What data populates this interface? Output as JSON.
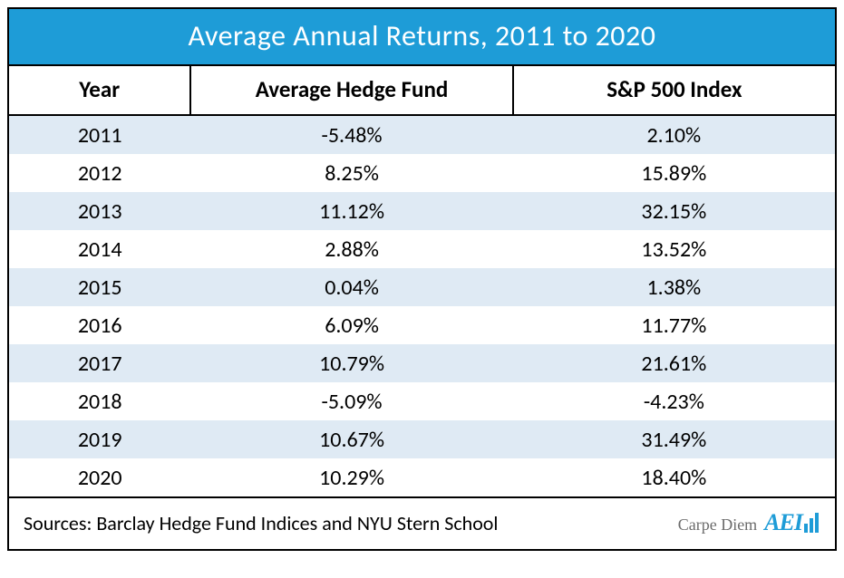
{
  "title": "Average Annual Returns, 2011 to 2020",
  "columns": [
    "Year",
    "Average Hedge Fund",
    "S&P 500 Index"
  ],
  "rows": [
    [
      "2011",
      "-5.48%",
      "2.10%"
    ],
    [
      "2012",
      "8.25%",
      "15.89%"
    ],
    [
      "2013",
      "11.12%",
      "32.15%"
    ],
    [
      "2014",
      "2.88%",
      "13.52%"
    ],
    [
      "2015",
      "0.04%",
      "1.38%"
    ],
    [
      "2016",
      "6.09%",
      "11.77%"
    ],
    [
      "2017",
      "10.79%",
      "21.61%"
    ],
    [
      "2018",
      "-5.09%",
      "-4.23%"
    ],
    [
      "2019",
      "10.67%",
      "31.49%"
    ],
    [
      "2020",
      "10.29%",
      "18.40%"
    ]
  ],
  "footer_source": "Sources: Barclay Hedge Fund Indices and NYU Stern School",
  "brand_small": "Carpe Diem",
  "brand_logo_text": "AEI",
  "styling": {
    "type": "table",
    "title_bg": "#1e9cd7",
    "title_color": "#ffffff",
    "title_fontsize": 32,
    "header_fontsize": 25,
    "cell_fontsize": 24,
    "footer_fontsize": 22,
    "border_color": "#000000",
    "row_stripe_even": "#dfeaf4",
    "row_stripe_odd": "#ffffff",
    "col_widths_pct": [
      22,
      39,
      39
    ],
    "brand_color": "#1e9cd7",
    "brand_small_color": "#6b6b6b",
    "font_family": "Calibri"
  }
}
